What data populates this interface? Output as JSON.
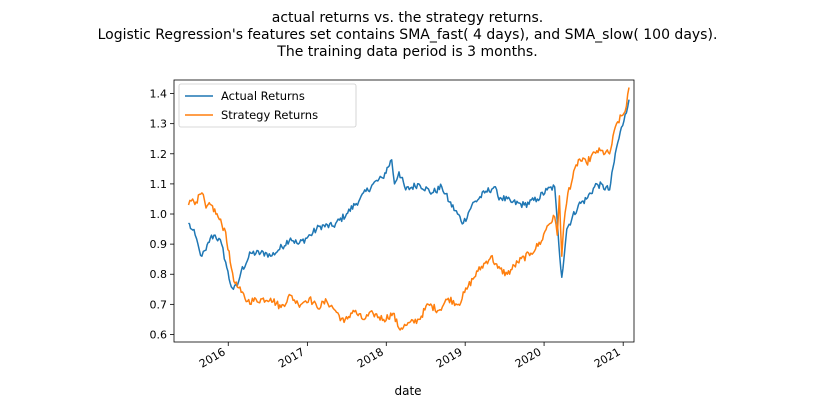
{
  "chart_data": {
    "type": "line",
    "title_lines": [
      "actual returns vs. the strategy returns.",
      "Logistic Regression's features set contains SMA_fast( 4 days), and SMA_slow( 100 days).",
      "The training data period is 3 months."
    ],
    "xlabel": "date",
    "ylabel": "",
    "xlim": [
      "2015-04-25",
      "2021-02-20"
    ],
    "ylim": [
      0.575,
      1.445
    ],
    "x_ticks": [
      "2016",
      "2017",
      "2018",
      "2019",
      "2020",
      "2021"
    ],
    "y_ticks": [
      0.6,
      0.7,
      0.8,
      0.9,
      1.0,
      1.1,
      1.2,
      1.3,
      1.4
    ],
    "grid": false,
    "legend_position": "upper-left",
    "series": [
      {
        "name": "Actual Returns",
        "color": "#1f77b4",
        "points": [
          [
            "2015-07-01",
            0.97
          ],
          [
            "2015-07-15",
            0.95
          ],
          [
            "2015-08-01",
            0.93
          ],
          [
            "2015-08-20",
            0.88
          ],
          [
            "2015-09-01",
            0.86
          ],
          [
            "2015-09-20",
            0.88
          ],
          [
            "2015-10-10",
            0.92
          ],
          [
            "2015-11-01",
            0.93
          ],
          [
            "2015-12-01",
            0.9
          ],
          [
            "2015-12-20",
            0.84
          ],
          [
            "2016-01-10",
            0.77
          ],
          [
            "2016-01-25",
            0.75
          ],
          [
            "2016-02-11",
            0.76
          ],
          [
            "2016-03-01",
            0.81
          ],
          [
            "2016-04-15",
            0.87
          ],
          [
            "2016-06-27",
            0.87
          ],
          [
            "2016-07-15",
            0.86
          ],
          [
            "2016-08-20",
            0.88
          ],
          [
            "2016-10-15",
            0.92
          ],
          [
            "2016-11-20",
            0.9
          ],
          [
            "2017-01-15",
            0.93
          ],
          [
            "2017-03-01",
            0.96
          ],
          [
            "2017-05-01",
            0.96
          ],
          [
            "2017-07-01",
            1.0
          ],
          [
            "2017-09-01",
            1.05
          ],
          [
            "2017-11-01",
            1.1
          ],
          [
            "2017-12-15",
            1.12
          ],
          [
            "2018-01-26",
            1.18
          ],
          [
            "2018-02-08",
            1.1
          ],
          [
            "2018-03-01",
            1.14
          ],
          [
            "2018-04-01",
            1.08
          ],
          [
            "2018-06-01",
            1.1
          ],
          [
            "2018-08-01",
            1.07
          ],
          [
            "2018-09-15",
            1.09
          ],
          [
            "2018-10-20",
            1.04
          ],
          [
            "2018-12-24",
            0.97
          ],
          [
            "2019-02-01",
            1.03
          ],
          [
            "2019-04-01",
            1.07
          ],
          [
            "2019-05-15",
            1.09
          ],
          [
            "2019-06-01",
            1.06
          ],
          [
            "2019-08-01",
            1.04
          ],
          [
            "2019-10-01",
            1.03
          ],
          [
            "2019-12-01",
            1.05
          ],
          [
            "2020-01-15",
            1.08
          ],
          [
            "2020-02-19",
            1.09
          ],
          [
            "2020-03-09",
            0.9
          ],
          [
            "2020-03-23",
            0.79
          ],
          [
            "2020-04-15",
            0.95
          ],
          [
            "2020-06-08",
            1.03
          ],
          [
            "2020-07-15",
            1.05
          ],
          [
            "2020-09-01",
            1.1
          ],
          [
            "2020-10-30",
            1.08
          ],
          [
            "2020-12-01",
            1.22
          ],
          [
            "2021-01-10",
            1.33
          ],
          [
            "2021-01-28",
            1.38
          ]
        ]
      },
      {
        "name": "Strategy Returns",
        "color": "#ff7f0e",
        "points": [
          [
            "2015-07-01",
            1.03
          ],
          [
            "2015-07-20",
            1.05
          ],
          [
            "2015-08-05",
            1.04
          ],
          [
            "2015-09-01",
            1.07
          ],
          [
            "2015-09-20",
            1.02
          ],
          [
            "2015-10-15",
            1.03
          ],
          [
            "2015-11-15",
            0.99
          ],
          [
            "2015-12-20",
            0.94
          ],
          [
            "2016-01-10",
            0.84
          ],
          [
            "2016-02-01",
            0.77
          ],
          [
            "2016-03-01",
            0.74
          ],
          [
            "2016-03-30",
            0.71
          ],
          [
            "2016-07-15",
            0.72
          ],
          [
            "2016-09-01",
            0.69
          ],
          [
            "2016-10-15",
            0.73
          ],
          [
            "2016-11-20",
            0.7
          ],
          [
            "2017-01-10",
            0.72
          ],
          [
            "2017-02-15",
            0.69
          ],
          [
            "2017-04-01",
            0.71
          ],
          [
            "2017-05-10",
            0.68
          ],
          [
            "2017-06-20",
            0.64
          ],
          [
            "2017-08-01",
            0.68
          ],
          [
            "2017-09-15",
            0.65
          ],
          [
            "2017-11-01",
            0.67
          ],
          [
            "2017-12-20",
            0.65
          ],
          [
            "2018-02-01",
            0.67
          ],
          [
            "2018-03-01",
            0.62
          ],
          [
            "2018-04-01",
            0.63
          ],
          [
            "2018-06-01",
            0.65
          ],
          [
            "2018-07-15",
            0.7
          ],
          [
            "2018-09-01",
            0.68
          ],
          [
            "2018-10-15",
            0.72
          ],
          [
            "2018-12-01",
            0.7
          ],
          [
            "2019-01-15",
            0.76
          ],
          [
            "2019-03-01",
            0.81
          ],
          [
            "2019-05-01",
            0.86
          ],
          [
            "2019-06-01",
            0.82
          ],
          [
            "2019-07-15",
            0.8
          ],
          [
            "2019-09-01",
            0.84
          ],
          [
            "2019-11-01",
            0.87
          ],
          [
            "2019-12-20",
            0.91
          ],
          [
            "2020-01-15",
            0.96
          ],
          [
            "2020-02-19",
            0.99
          ],
          [
            "2020-03-02",
            0.93
          ],
          [
            "2020-03-12",
            1.06
          ],
          [
            "2020-03-23",
            0.86
          ],
          [
            "2020-04-01",
            0.96
          ],
          [
            "2020-04-20",
            1.07
          ],
          [
            "2020-06-08",
            1.18
          ],
          [
            "2020-07-15",
            1.17
          ],
          [
            "2020-09-01",
            1.21
          ],
          [
            "2020-10-30",
            1.2
          ],
          [
            "2020-12-01",
            1.3
          ],
          [
            "2021-01-10",
            1.34
          ],
          [
            "2021-01-28",
            1.42
          ]
        ]
      }
    ]
  }
}
